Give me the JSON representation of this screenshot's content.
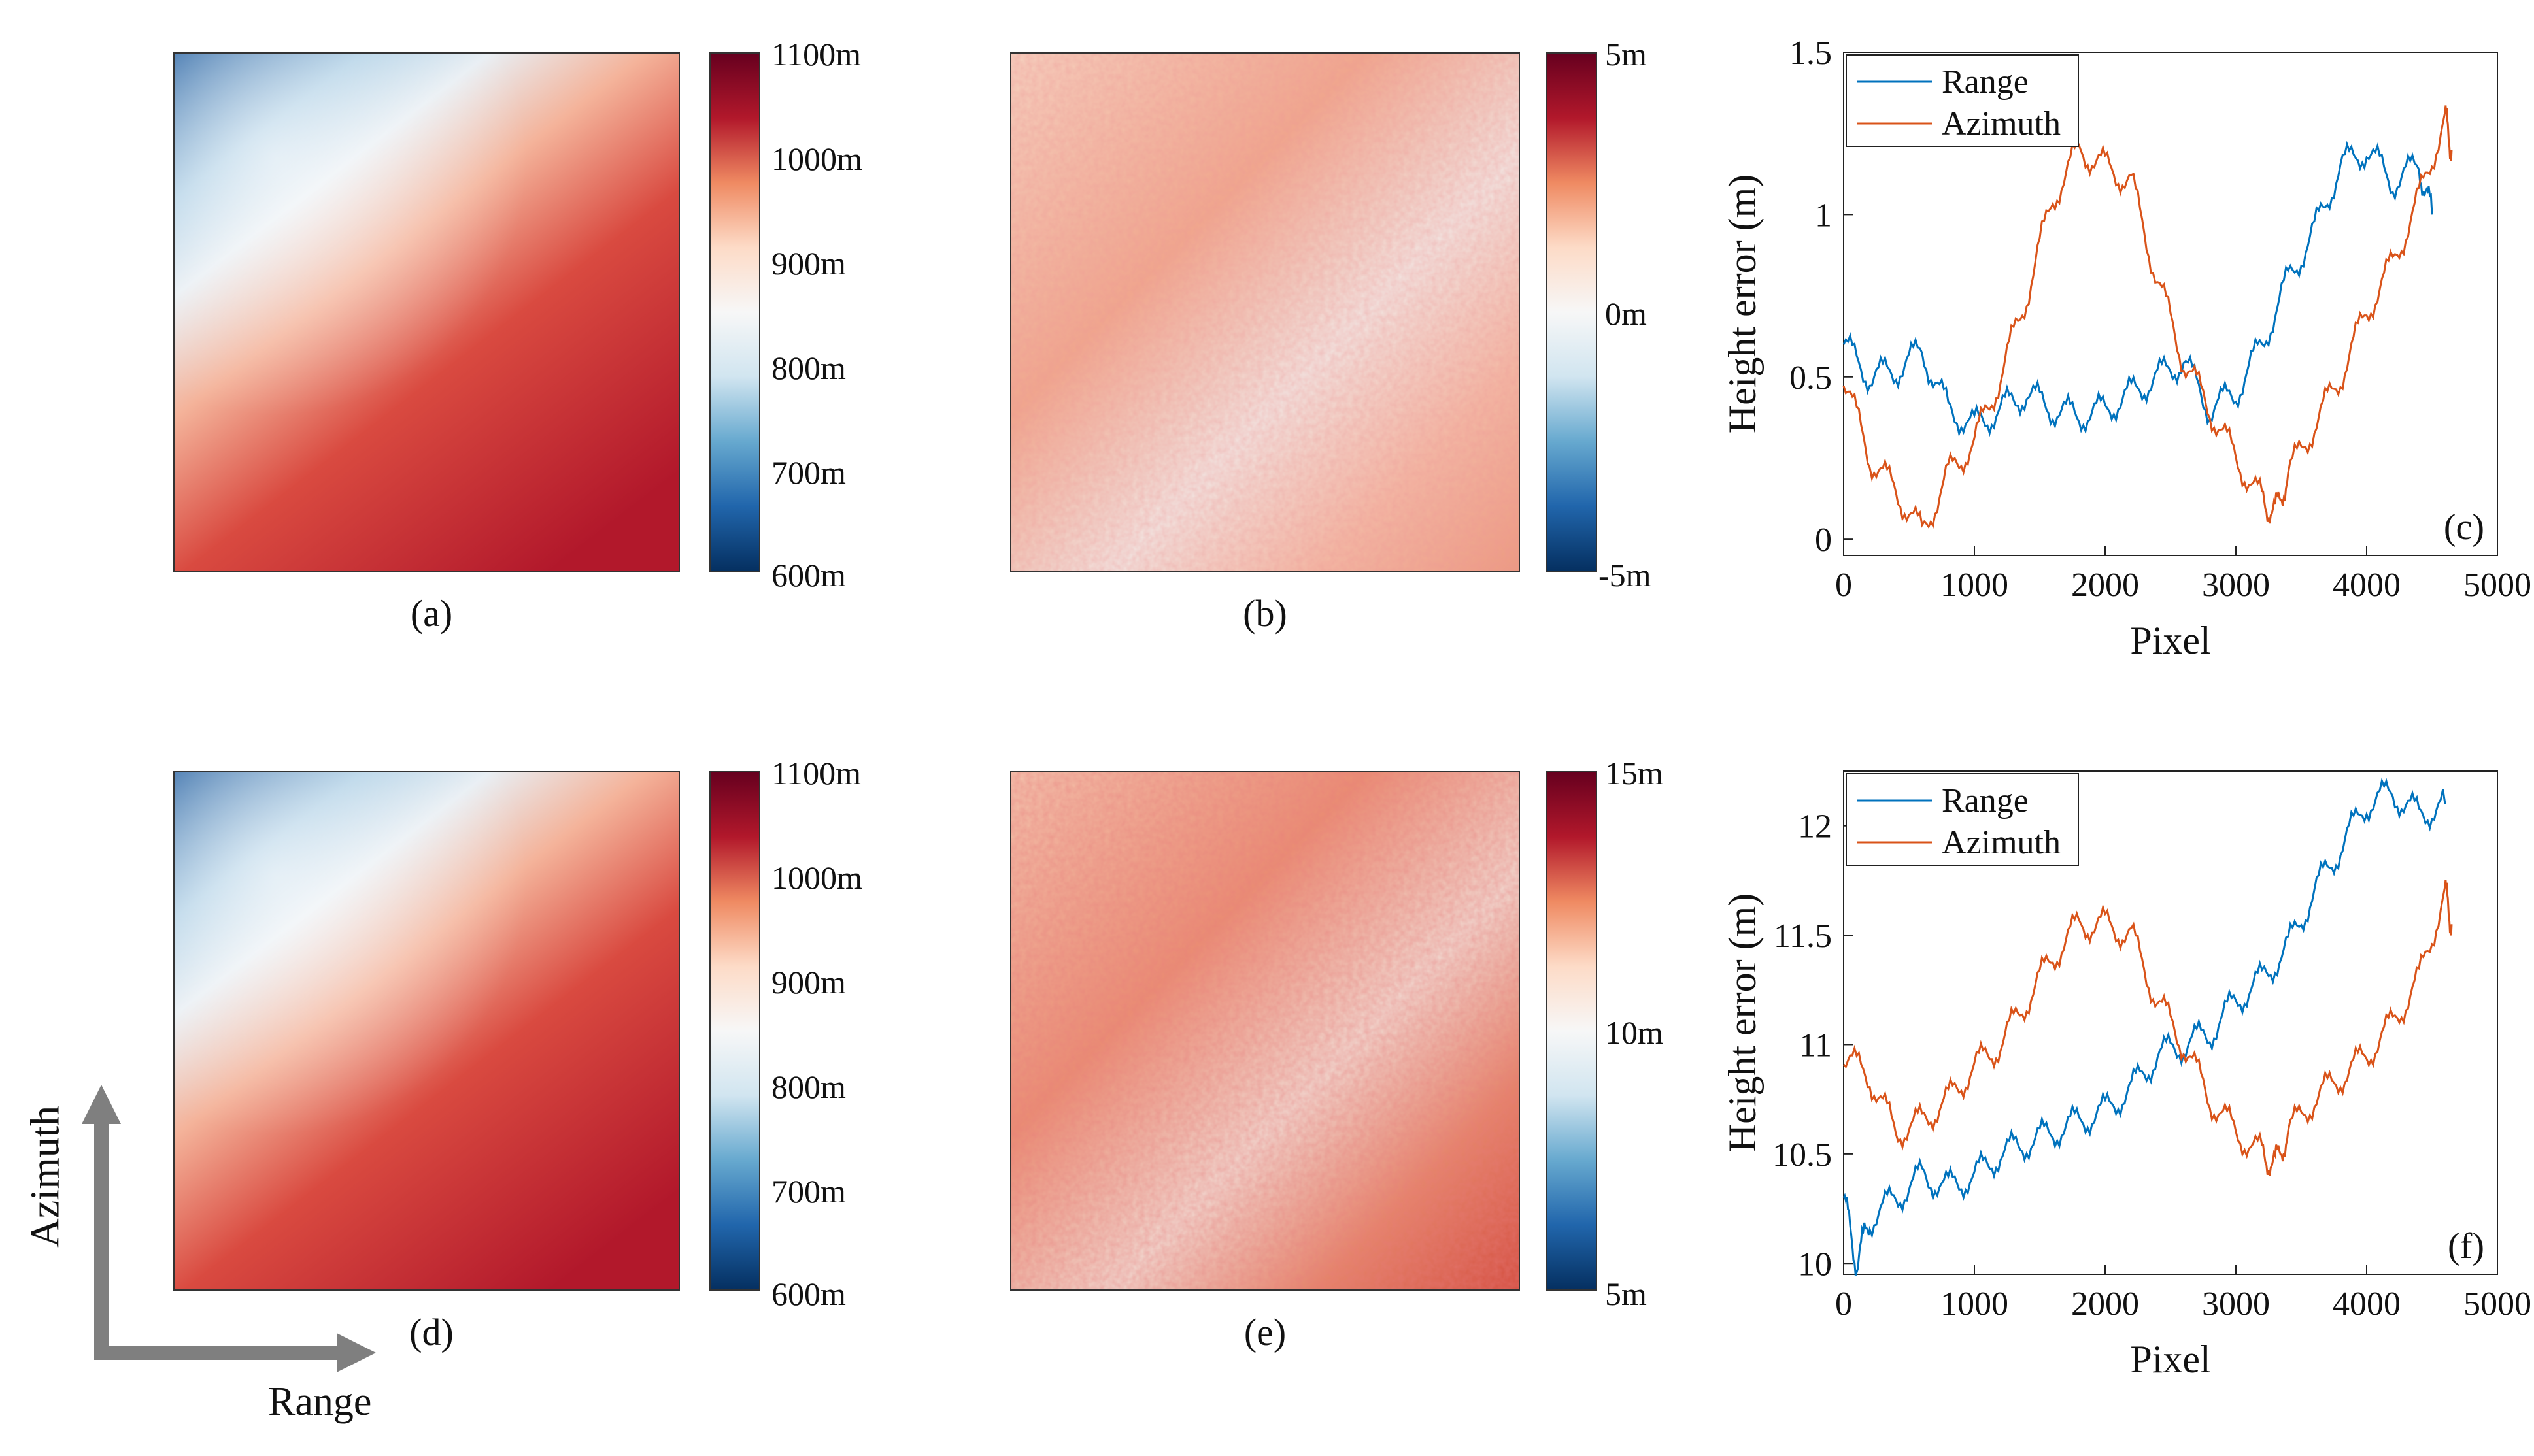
{
  "colors": {
    "blue_dark": "#08306b",
    "blue": "#2166ac",
    "blue_light": "#d1e5f0",
    "white": "#f7f7f7",
    "red_light": "#fddbc7",
    "red": "#d6604d",
    "red_dark": "#67001f",
    "series_range": "#0072bd",
    "series_azimuth": "#d95319",
    "arrow": "#7f7f7f"
  },
  "panels": {
    "a": {
      "caption": "(a)",
      "colorbar_ticks": [
        "1100m",
        "1000m",
        "900m",
        "800m",
        "700m",
        "600m"
      ]
    },
    "b": {
      "caption": "(b)",
      "colorbar_ticks": [
        "5m",
        "0m",
        "-5m"
      ]
    },
    "d": {
      "caption": "(d)",
      "colorbar_ticks": [
        "1100m",
        "1000m",
        "900m",
        "800m",
        "700m",
        "600m"
      ]
    },
    "e": {
      "caption": "(e)",
      "colorbar_ticks": [
        "15m",
        "10m",
        "5m"
      ]
    }
  },
  "arrows": {
    "azimuth_label": "Azimuth",
    "range_label": "Range"
  },
  "chart_data": [
    {
      "id": "c",
      "type": "line",
      "panel_label": "(c)",
      "xlabel": "Pixel",
      "ylabel": "Height error (m)",
      "xlim": [
        0,
        5000
      ],
      "ylim": [
        -0.05,
        1.5
      ],
      "xticks": [
        0,
        1000,
        2000,
        3000,
        4000,
        5000
      ],
      "yticks": [
        0,
        0.5,
        1,
        1.5
      ],
      "ytick_labels": [
        "0",
        "0.5",
        "1",
        "1.5"
      ],
      "legend": [
        "Range",
        "Azimuth"
      ],
      "legend_position": "top-left",
      "series": [
        {
          "name": "Range",
          "x": [
            0,
            200,
            400,
            600,
            800,
            1000,
            1200,
            1400,
            1600,
            1800,
            2000,
            2200,
            2400,
            2600,
            2800,
            3000,
            3200,
            3400,
            3600,
            3800,
            4000,
            4200,
            4400,
            4500
          ],
          "y": [
            0.6,
            0.5,
            0.52,
            0.58,
            0.4,
            0.35,
            0.4,
            0.45,
            0.4,
            0.38,
            0.4,
            0.45,
            0.5,
            0.55,
            0.4,
            0.45,
            0.6,
            0.8,
            0.95,
            1.15,
            1.2,
            1.1,
            1.15,
            1.0
          ]
        },
        {
          "name": "Azimuth",
          "x": [
            0,
            200,
            400,
            600,
            800,
            1000,
            1200,
            1400,
            1600,
            1800,
            2000,
            2200,
            2400,
            2600,
            2800,
            3000,
            3200,
            3300,
            3400,
            3600,
            3800,
            4000,
            4200,
            4400,
            4600,
            4650
          ],
          "y": [
            0.5,
            0.25,
            0.15,
            0.02,
            0.2,
            0.3,
            0.5,
            0.75,
            1.05,
            1.2,
            1.15,
            1.1,
            0.8,
            0.55,
            0.4,
            0.25,
            0.12,
            0.08,
            0.2,
            0.35,
            0.5,
            0.7,
            0.85,
            1.05,
            1.3,
            1.2
          ]
        }
      ]
    },
    {
      "id": "f",
      "type": "line",
      "panel_label": "(f)",
      "xlabel": "Pixel",
      "ylabel": "Height error (m)",
      "xlim": [
        0,
        5000
      ],
      "ylim": [
        9.95,
        12.25
      ],
      "xticks": [
        0,
        1000,
        2000,
        3000,
        4000,
        5000
      ],
      "yticks": [
        10,
        10.5,
        11,
        11.5,
        12
      ],
      "ytick_labels": [
        "10",
        "10.5",
        "11",
        "11.5",
        "12"
      ],
      "legend": [
        "Range",
        "Azimuth"
      ],
      "legend_position": "top-left",
      "series": [
        {
          "name": "Range",
          "x": [
            0,
            100,
            200,
            400,
            600,
            800,
            1000,
            1200,
            1400,
            1600,
            1800,
            2000,
            2200,
            2400,
            2600,
            2800,
            3000,
            3200,
            3400,
            3600,
            3800,
            4000,
            4200,
            4400,
            4600
          ],
          "y": [
            10.3,
            10.0,
            10.2,
            10.3,
            10.4,
            10.35,
            10.4,
            10.5,
            10.55,
            10.6,
            10.65,
            10.7,
            10.8,
            10.95,
            11.0,
            11.05,
            11.2,
            11.3,
            11.45,
            11.7,
            11.9,
            12.1,
            12.15,
            12.05,
            12.1
          ]
        },
        {
          "name": "Azimuth",
          "x": [
            0,
            200,
            400,
            600,
            800,
            1000,
            1200,
            1400,
            1600,
            1800,
            2000,
            2200,
            2400,
            2600,
            2800,
            3000,
            3200,
            3300,
            3400,
            3600,
            3800,
            4000,
            4200,
            4400,
            4600,
            4650
          ],
          "y": [
            10.95,
            10.85,
            10.6,
            10.65,
            10.75,
            10.9,
            11.0,
            11.2,
            11.4,
            11.55,
            11.55,
            11.5,
            11.2,
            11.0,
            10.75,
            10.6,
            10.5,
            10.45,
            10.6,
            10.75,
            10.85,
            10.95,
            11.1,
            11.3,
            11.7,
            11.55
          ]
        }
      ]
    }
  ]
}
